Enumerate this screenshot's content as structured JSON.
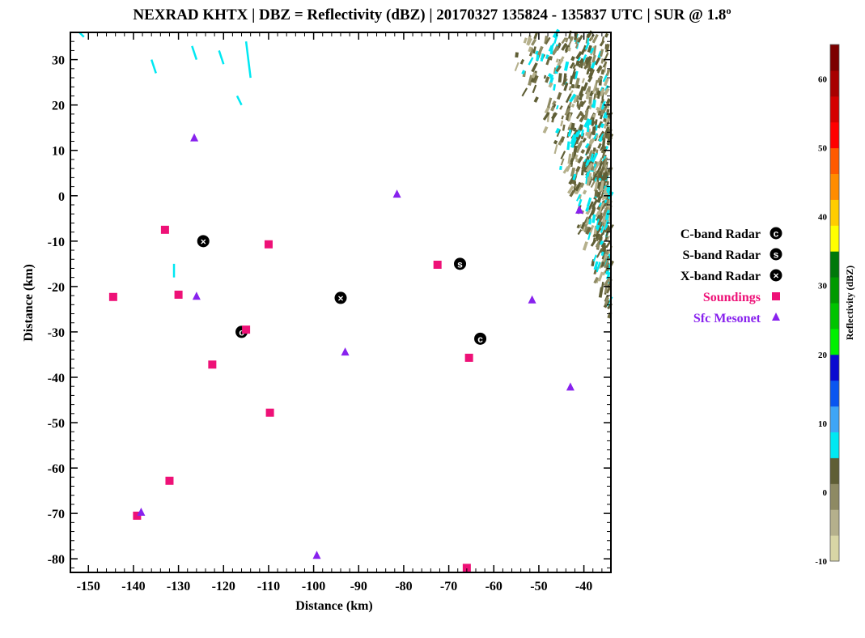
{
  "chart_data": {
    "type": "scatter",
    "title": "NEXRAD KHTX | DBZ = Reflectivity (dBZ) | 20170327 135824 - 135837 UTC | SUR @ 1.8º",
    "xlabel": "Distance (km)",
    "ylabel": "Distance (km)",
    "xlim": [
      -154,
      -34
    ],
    "ylim": [
      -83,
      36
    ],
    "xticks": [
      -150,
      -140,
      -130,
      -120,
      -110,
      -100,
      -90,
      -80,
      -70,
      -60,
      -50,
      -40
    ],
    "yticks": [
      30,
      20,
      10,
      0,
      -10,
      -20,
      -30,
      -40,
      -50,
      -60,
      -70,
      -80
    ],
    "legend": {
      "placement": "right",
      "entries": [
        {
          "label": "C-band Radar",
          "color": "#000000",
          "marker": "circle-C"
        },
        {
          "label": "S-band Radar",
          "color": "#000000",
          "marker": "circle-S"
        },
        {
          "label": "X-band Radar",
          "color": "#000000",
          "marker": "circle-X"
        },
        {
          "label": "Soundings",
          "color": "#ee1177",
          "marker": "square"
        },
        {
          "label": "Sfc Mesonet",
          "color": "#8822ee",
          "marker": "triangle"
        }
      ]
    },
    "series": [
      {
        "name": "C-band Radar",
        "points": [
          [
            -116,
            -30
          ],
          [
            -63,
            -31.5
          ]
        ]
      },
      {
        "name": "S-band Radar",
        "points": [
          [
            -67.5,
            -15
          ]
        ]
      },
      {
        "name": "X-band Radar",
        "points": [
          [
            -124.5,
            -10
          ],
          [
            -94,
            -22.5
          ]
        ]
      },
      {
        "name": "Soundings",
        "points": [
          [
            -133,
            -7.5
          ],
          [
            -110,
            -10.7
          ],
          [
            -72.5,
            -15.2
          ],
          [
            -144.5,
            -22.3
          ],
          [
            -130,
            -21.8
          ],
          [
            -115,
            -29.5
          ],
          [
            -65.5,
            -35.7
          ],
          [
            -122.5,
            -37.2
          ],
          [
            -109.7,
            -47.8
          ],
          [
            -132,
            -62.8
          ],
          [
            -139.2,
            -70.5
          ],
          [
            -66,
            -82
          ]
        ]
      },
      {
        "name": "Sfc Mesonet",
        "points": [
          [
            -126.5,
            12.7
          ],
          [
            -81.5,
            0.3
          ],
          [
            -41,
            -3.2
          ],
          [
            -126,
            -22.2
          ],
          [
            -51.5,
            -23
          ],
          [
            -93,
            -34.5
          ],
          [
            -43,
            -42.2
          ],
          [
            -138.3,
            -69.8
          ],
          [
            -99.3,
            -79.3
          ]
        ]
      }
    ],
    "colorbar": {
      "label": "Reflectivity (dBZ)",
      "range": [
        -10,
        65
      ],
      "ticks": [
        -10,
        0,
        10,
        20,
        30,
        40,
        50,
        60
      ],
      "colors": [
        "#d8d5a5",
        "#b5b08c",
        "#8e8a63",
        "#5f5e35",
        "#00e8f2",
        "#3ea5f6",
        "#0a56f0",
        "#0a0ad0",
        "#00f000",
        "#00c400",
        "#009a00",
        "#00780a",
        "#ffff00",
        "#ffcd00",
        "#ff8c00",
        "#ff5a00",
        "#ff0000",
        "#d40000",
        "#a80000",
        "#7c0000"
      ]
    }
  }
}
